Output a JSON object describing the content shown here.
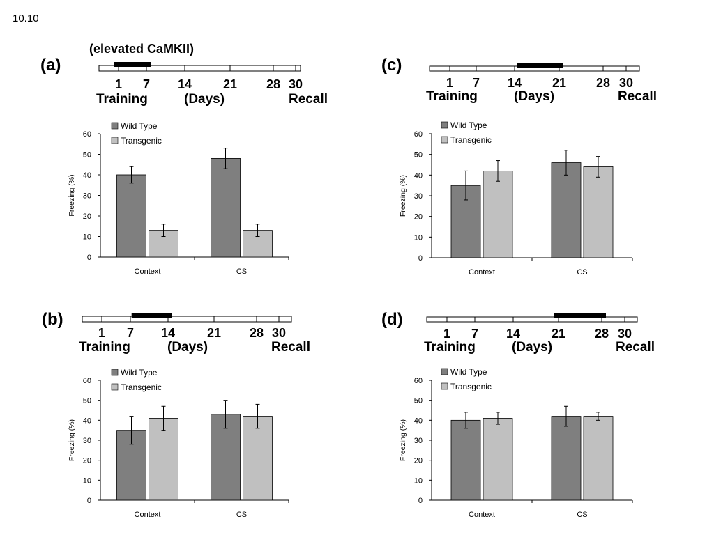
{
  "page_label": "10.10",
  "colors": {
    "wild_type": "#7f7f7f",
    "transgenic": "#c0c0c0",
    "treatment_bar": "#000000"
  },
  "timeline": {
    "day_labels": [
      "1",
      "7",
      "14",
      "21",
      "28",
      "30"
    ],
    "training_label": "Training",
    "days_label": "(Days)",
    "recall_label": "Recall"
  },
  "legend": [
    "Wild Type",
    "Transgenic"
  ],
  "chart_data": [
    {
      "type": "bar",
      "panel": "(a)",
      "annotation": "(elevated CaMKII)",
      "treatment_days": [
        1,
        7
      ],
      "categories": [
        "Context",
        "CS"
      ],
      "ylabel": "Freezing (%)",
      "ylim": [
        0,
        60
      ],
      "yticks": [
        0,
        10,
        20,
        30,
        40,
        50,
        60
      ],
      "series": [
        {
          "name": "Wild Type",
          "values": [
            40,
            48
          ],
          "errors": [
            4,
            5
          ]
        },
        {
          "name": "Transgenic",
          "values": [
            13,
            13
          ],
          "errors": [
            3,
            3
          ]
        }
      ]
    },
    {
      "type": "bar",
      "panel": "(b)",
      "annotation": "",
      "treatment_days": [
        8,
        14
      ],
      "categories": [
        "Context",
        "CS"
      ],
      "ylabel": "Freezing (%)",
      "ylim": [
        0,
        60
      ],
      "yticks": [
        0,
        10,
        20,
        30,
        40,
        50,
        60
      ],
      "series": [
        {
          "name": "Wild Type",
          "values": [
            35,
            43
          ],
          "errors": [
            7,
            7
          ]
        },
        {
          "name": "Transgenic",
          "values": [
            41,
            42
          ],
          "errors": [
            6,
            6
          ]
        }
      ]
    },
    {
      "type": "bar",
      "panel": "(c)",
      "annotation": "",
      "treatment_days": [
        15,
        21
      ],
      "categories": [
        "Context",
        "CS"
      ],
      "ylabel": "Freezing (%)",
      "ylim": [
        0,
        60
      ],
      "yticks": [
        0,
        10,
        20,
        30,
        40,
        50,
        60
      ],
      "series": [
        {
          "name": "Wild Type",
          "values": [
            35,
            46
          ],
          "errors": [
            7,
            6
          ]
        },
        {
          "name": "Transgenic",
          "values": [
            42,
            44
          ],
          "errors": [
            5,
            5
          ]
        }
      ]
    },
    {
      "type": "bar",
      "panel": "(d)",
      "annotation": "",
      "treatment_days": [
        21,
        28
      ],
      "categories": [
        "Context",
        "CS"
      ],
      "ylabel": "Freezing (%)",
      "ylim": [
        0,
        60
      ],
      "yticks": [
        0,
        10,
        20,
        30,
        40,
        50,
        60
      ],
      "series": [
        {
          "name": "Wild Type",
          "values": [
            40,
            42
          ],
          "errors": [
            4,
            5
          ]
        },
        {
          "name": "Transgenic",
          "values": [
            41,
            42
          ],
          "errors": [
            3,
            2
          ]
        }
      ]
    }
  ]
}
